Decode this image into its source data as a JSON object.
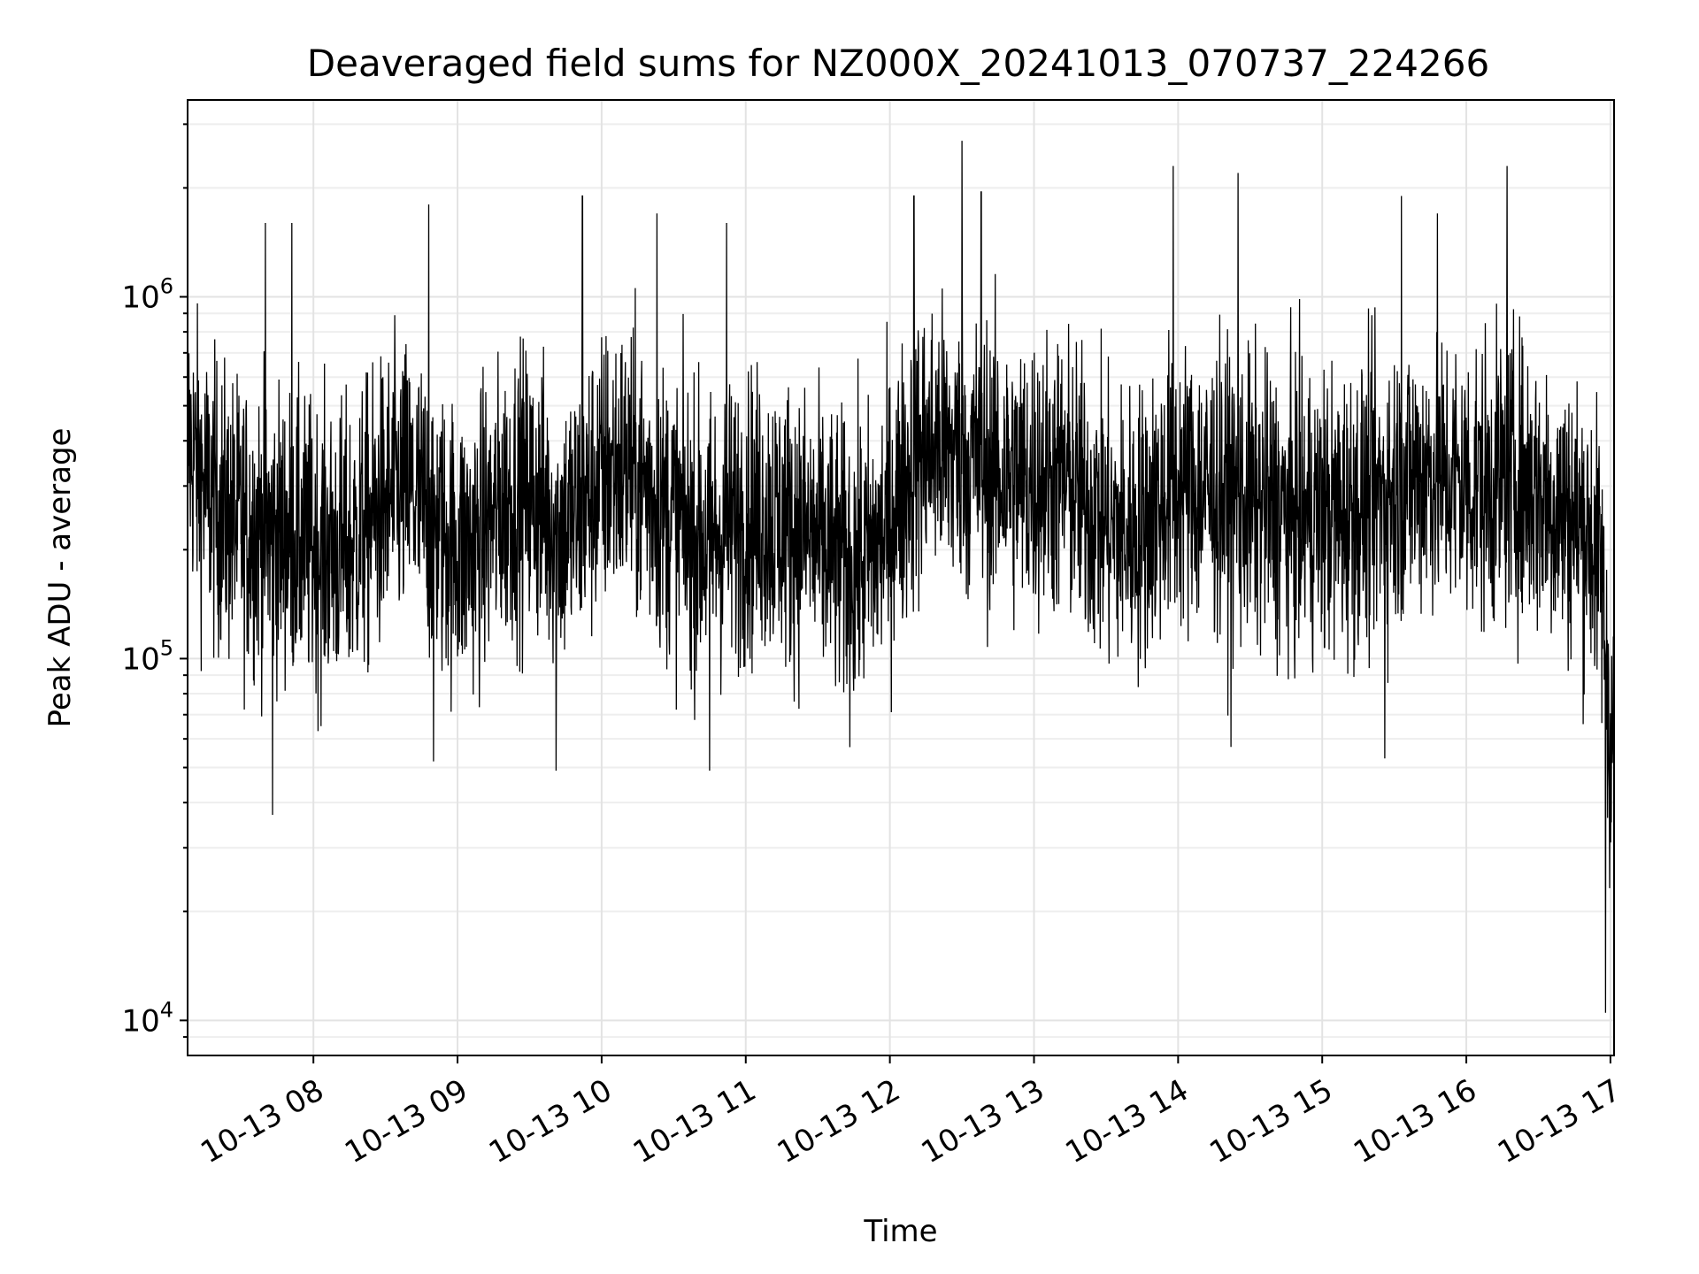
{
  "chart_data": {
    "type": "line",
    "title": "Deaveraged field sums for NZ000X_20241013_070737_224266",
    "xlabel": "Time",
    "ylabel": "Peak ADU - average",
    "y_scale": "log",
    "grid": true,
    "legend": "none",
    "xlim": [
      "2024-10-13 07:07:37",
      "2024-10-13 17:01:30"
    ],
    "ylim": [
      8000,
      3500000
    ],
    "x_ticks": [
      "10-13 08",
      "10-13 09",
      "10-13 10",
      "10-13 11",
      "10-13 12",
      "10-13 13",
      "10-13 14",
      "10-13 15",
      "10-13 16",
      "10-13 17"
    ],
    "x_tick_values": [
      "2024-10-13 08:00",
      "2024-10-13 09:00",
      "2024-10-13 10:00",
      "2024-10-13 11:00",
      "2024-10-13 12:00",
      "2024-10-13 13:00",
      "2024-10-13 14:00",
      "2024-10-13 15:00",
      "2024-10-13 16:00",
      "2024-10-13 17:00"
    ],
    "y_ticks": [
      {
        "value": 10000,
        "base": "10",
        "exp": "4"
      },
      {
        "value": 100000,
        "base": "10",
        "exp": "5"
      },
      {
        "value": 1000000,
        "base": "10",
        "exp": "6"
      }
    ],
    "line_color": "#000000",
    "series": [
      {
        "x": [
          "07:08",
          "07:14",
          "07:20",
          "07:26",
          "07:32",
          "07:38",
          "07:44",
          "07:50",
          "07:56",
          "08:02",
          "08:08",
          "08:14",
          "08:20",
          "08:26",
          "08:32",
          "08:38",
          "08:44",
          "08:50",
          "08:56",
          "09:02",
          "09:08",
          "09:14",
          "09:20",
          "09:26",
          "09:32",
          "09:38",
          "09:44",
          "09:50",
          "09:56",
          "10:02",
          "10:08",
          "10:14",
          "10:20",
          "10:26",
          "10:32",
          "10:38",
          "10:44",
          "10:50",
          "10:56",
          "11:02",
          "11:08",
          "11:14",
          "11:20",
          "11:26",
          "11:32",
          "11:38",
          "11:44",
          "11:50",
          "11:56",
          "12:02",
          "12:08",
          "12:14",
          "12:20",
          "12:26",
          "12:32",
          "12:38",
          "12:44",
          "12:50",
          "12:56",
          "13:02",
          "13:08",
          "13:14",
          "13:20",
          "13:26",
          "13:32",
          "13:38",
          "13:44",
          "13:50",
          "13:56",
          "14:02",
          "14:08",
          "14:14",
          "14:20",
          "14:26",
          "14:32",
          "14:38",
          "14:44",
          "14:50",
          "14:56",
          "15:02",
          "15:08",
          "15:14",
          "15:20",
          "15:26",
          "15:32",
          "15:38",
          "15:44",
          "15:50",
          "15:56",
          "16:02",
          "16:08",
          "16:14",
          "16:20",
          "16:26",
          "16:32",
          "16:38",
          "16:44",
          "16:50",
          "16:56",
          "17:00"
        ],
        "y": [
          400000,
          300000,
          260000,
          240000,
          230000,
          230000,
          220000,
          220000,
          210000,
          200000,
          200000,
          200000,
          220000,
          250000,
          280000,
          300000,
          270000,
          240000,
          210000,
          200000,
          210000,
          240000,
          270000,
          290000,
          280000,
          250000,
          230000,
          250000,
          290000,
          330000,
          340000,
          320000,
          290000,
          260000,
          240000,
          220000,
          210000,
          220000,
          240000,
          250000,
          250000,
          240000,
          230000,
          220000,
          200000,
          190000,
          180000,
          190000,
          210000,
          260000,
          330000,
          380000,
          390000,
          370000,
          360000,
          350000,
          330000,
          320000,
          310000,
          320000,
          320000,
          310000,
          280000,
          250000,
          230000,
          220000,
          230000,
          260000,
          290000,
          300000,
          290000,
          290000,
          280000,
          270000,
          270000,
          260000,
          250000,
          250000,
          250000,
          250000,
          250000,
          260000,
          270000,
          290000,
          300000,
          320000,
          330000,
          320000,
          310000,
          300000,
          300000,
          310000,
          320000,
          300000,
          280000,
          260000,
          250000,
          230000,
          180000,
          60000
        ],
        "spikes": [
          {
            "x": "07:40",
            "y": 1600000
          },
          {
            "x": "07:43",
            "y": 37000
          },
          {
            "x": "07:51",
            "y": 1600000
          },
          {
            "x": "08:48",
            "y": 1800000
          },
          {
            "x": "08:50",
            "y": 52000
          },
          {
            "x": "09:41",
            "y": 49000
          },
          {
            "x": "09:52",
            "y": 1900000
          },
          {
            "x": "10:23",
            "y": 1700000
          },
          {
            "x": "10:52",
            "y": 1600000
          },
          {
            "x": "10:45",
            "y": 49000
          },
          {
            "x": "12:10",
            "y": 1900000
          },
          {
            "x": "12:30",
            "y": 2700000
          },
          {
            "x": "12:38",
            "y": 1950000
          },
          {
            "x": "13:58",
            "y": 2300000
          },
          {
            "x": "14:25",
            "y": 2200000
          },
          {
            "x": "14:22",
            "y": 57000
          },
          {
            "x": "15:33",
            "y": 1900000
          },
          {
            "x": "15:26",
            "y": 53000
          },
          {
            "x": "15:48",
            "y": 1700000
          },
          {
            "x": "16:17",
            "y": 2300000
          },
          {
            "x": "16:58",
            "y": 10500
          }
        ]
      }
    ]
  }
}
